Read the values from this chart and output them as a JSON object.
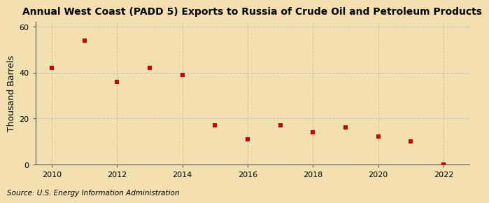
{
  "title": "Annual West Coast (PADD 5) Exports to Russia of Crude Oil and Petroleum Products",
  "ylabel": "Thousand Barrels",
  "source": "Source: U.S. Energy Information Administration",
  "years": [
    2010,
    2011,
    2012,
    2013,
    2014,
    2015,
    2016,
    2017,
    2018,
    2019,
    2020,
    2021,
    2022
  ],
  "values": [
    42,
    54,
    36,
    42,
    39,
    17,
    11,
    17,
    14,
    16,
    12,
    10,
    0
  ],
  "marker_color": "#CC0000",
  "marker": "s",
  "marker_size": 22,
  "background_color": "#F2E0B0",
  "grid_color": "#AAAAAA",
  "xlim": [
    2009.5,
    2022.8
  ],
  "ylim": [
    0,
    62
  ],
  "yticks": [
    0,
    20,
    40,
    60
  ],
  "xticks": [
    2010,
    2012,
    2014,
    2016,
    2018,
    2020,
    2022
  ],
  "title_fontsize": 10,
  "label_fontsize": 9,
  "tick_fontsize": 8,
  "source_fontsize": 7.5
}
